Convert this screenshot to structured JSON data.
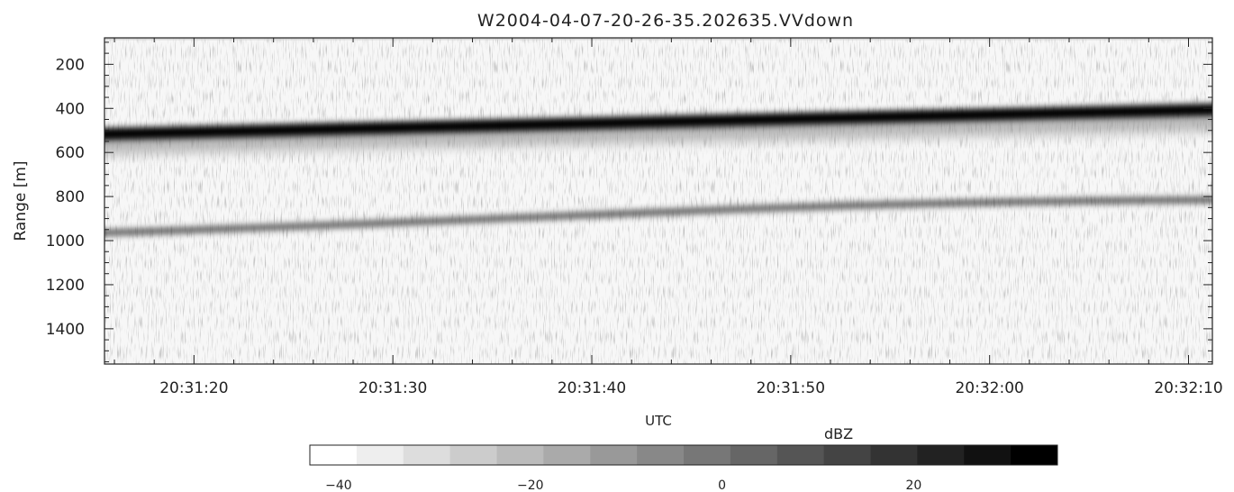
{
  "chart_data": {
    "type": "heatmap",
    "title": "W2004-04-07-20-26-35.202635.VVdown",
    "xlabel": "UTC",
    "ylabel": "Range [m]",
    "x_tick_labels": [
      "20:31:20",
      "20:31:30",
      "20:31:40",
      "20:31:50",
      "20:32:00",
      "20:32:10"
    ],
    "x_range_seconds": [
      75.5,
      131.2
    ],
    "x_tick_seconds": [
      80,
      90,
      100,
      110,
      120,
      130
    ],
    "y_ticks": [
      200,
      400,
      600,
      800,
      1000,
      1200,
      1400
    ],
    "ylim": [
      80,
      1560
    ],
    "y_inverted": true,
    "features": [
      {
        "kind": "strong-return-band",
        "range_start": [
          490,
          378
        ],
        "range_end": [
          515,
          408
        ],
        "thickness": 55
      },
      {
        "kind": "weak-return-band",
        "range_start": [
          950,
          800
        ],
        "thickness": 30
      },
      {
        "kind": "near-range-clutter",
        "range": 90
      }
    ],
    "colorbar": {
      "label": "dBZ",
      "range": [
        -43,
        35
      ],
      "tick_values": [
        -40,
        -20,
        0,
        20
      ],
      "tick_labels": [
        "−40",
        "−20",
        "0",
        "20"
      ],
      "steps": 16,
      "colormap": "white-to-black grayscale"
    },
    "grid": false
  }
}
